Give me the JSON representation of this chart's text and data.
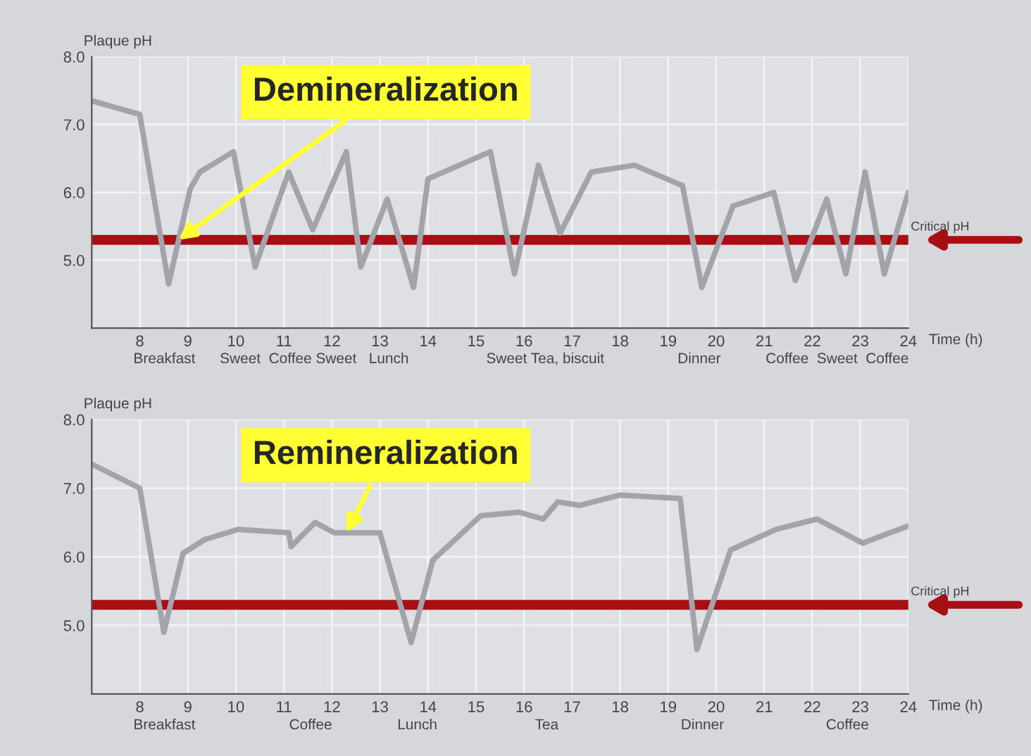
{
  "chart_data": [
    {
      "type": "line",
      "xlabel": "Time (h)",
      "ylabel": "Plaque pH",
      "x": [
        7,
        8,
        8.6,
        9.05,
        9.25,
        9.95,
        10.4,
        11.1,
        11.6,
        12.3,
        12.6,
        13.15,
        13.7,
        14.0,
        15.3,
        15.8,
        16.3,
        16.75,
        17.4,
        18.3,
        19.3,
        19.7,
        20.35,
        21.2,
        21.65,
        22.3,
        22.7,
        23.1,
        23.5,
        24.0
      ],
      "series": [
        {
          "color": "#a3a4ab",
          "values": [
            7.35,
            7.15,
            4.65,
            6.05,
            6.3,
            6.6,
            4.9,
            6.3,
            5.45,
            6.6,
            4.9,
            5.9,
            4.6,
            6.2,
            6.6,
            4.8,
            6.4,
            5.4,
            6.3,
            6.4,
            6.1,
            4.6,
            5.8,
            6.0,
            4.7,
            5.9,
            4.8,
            6.3,
            4.8,
            6.0
          ]
        }
      ],
      "xlim": [
        7,
        24
      ],
      "xticks": [
        8,
        9,
        10,
        11,
        12,
        13,
        14,
        15,
        16,
        17,
        18,
        19,
        20,
        21,
        22,
        23,
        24
      ],
      "ylim": [
        4,
        8
      ],
      "yticks": [
        {
          "value": 5,
          "label": "5.0"
        },
        {
          "value": 6,
          "label": "6.0"
        },
        {
          "value": 7,
          "label": "7.0"
        },
        {
          "value": 8,
          "label": "8.0"
        }
      ],
      "grid": true,
      "ref_lines": [
        {
          "axis": "y",
          "value": 5.3,
          "label": "Critical pH",
          "color": "#a80f14"
        }
      ],
      "annotations": [
        {
          "text": "Demineralization",
          "x": 8.8,
          "y": 5.3
        },
        "Breakfast      Sweet  Coffee Sweet   Lunch                   Sweet Tea, biscuit                  Dinner           Coffee  Sweet  Coffee"
      ]
    },
    {
      "type": "line",
      "xlabel": "Time (h)",
      "ylabel": "Plaque pH",
      "x": [
        7,
        8,
        8.5,
        8.9,
        9.35,
        10.05,
        11.1,
        11.15,
        11.65,
        12.05,
        13.0,
        13.65,
        14.1,
        15.1,
        15.9,
        16.4,
        16.7,
        17.15,
        18.0,
        19.25,
        19.6,
        20.3,
        21.25,
        22.1,
        23.05,
        24.0
      ],
      "series": [
        {
          "color": "#a3a4ab",
          "values": [
            7.35,
            7.0,
            4.9,
            6.05,
            6.25,
            6.4,
            6.35,
            6.15,
            6.5,
            6.35,
            6.35,
            4.75,
            5.95,
            6.6,
            6.65,
            6.55,
            6.8,
            6.75,
            6.9,
            6.85,
            4.65,
            6.1,
            6.4,
            6.55,
            6.2,
            6.45
          ]
        }
      ],
      "xlim": [
        7,
        24
      ],
      "xticks": [
        8,
        9,
        10,
        11,
        12,
        13,
        14,
        15,
        16,
        17,
        18,
        19,
        20,
        21,
        22,
        23,
        24
      ],
      "ylim": [
        4,
        8
      ],
      "yticks": [
        {
          "value": 5,
          "label": "5.0"
        },
        {
          "value": 6,
          "label": "6.0"
        },
        {
          "value": 7,
          "label": "7.0"
        },
        {
          "value": 8,
          "label": "8.0"
        }
      ],
      "grid": true,
      "ref_lines": [
        {
          "axis": "y",
          "value": 5.3,
          "label": "Critical pH",
          "color": "#a80f14"
        }
      ],
      "annotations": [
        {
          "text": "Remineralization",
          "x": 12.3,
          "y": 6.35
        },
        "Breakfast                       Coffee                Lunch                        Tea                              Dinner                         Coffee"
      ]
    }
  ]
}
